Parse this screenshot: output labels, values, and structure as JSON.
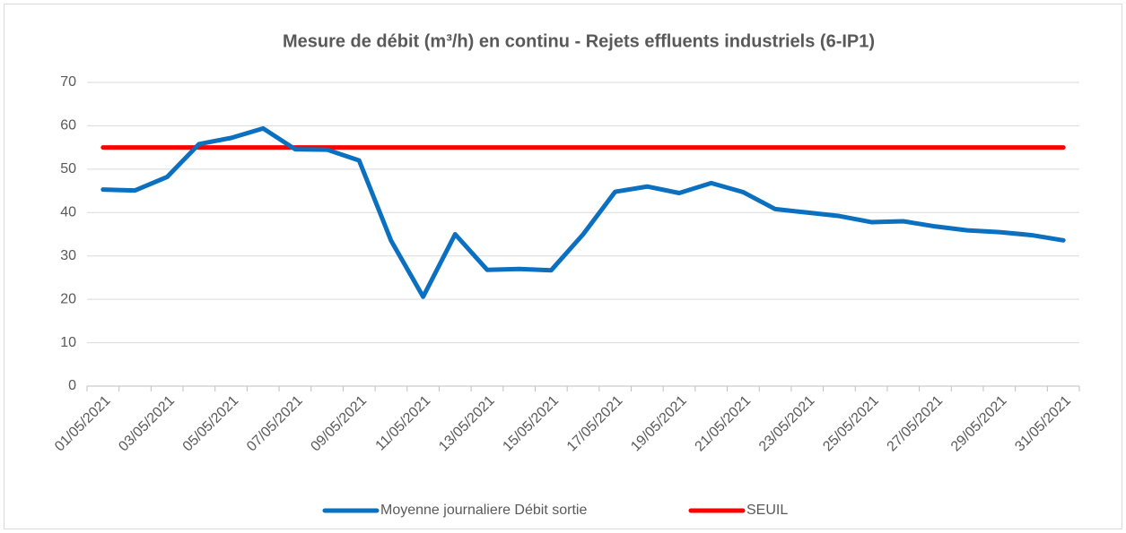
{
  "chart_data": {
    "type": "line",
    "title": "Mesure de débit (m³/h) en continu - Rejets effluents industriels (6-IP1)",
    "categories": [
      "01/05/2021",
      null,
      "03/05/2021",
      null,
      "05/05/2021",
      null,
      "07/05/2021",
      null,
      "09/05/2021",
      null,
      "11/05/2021",
      null,
      "13/05/2021",
      null,
      "15/05/2021",
      null,
      "17/05/2021",
      null,
      "19/05/2021",
      null,
      "21/05/2021",
      null,
      "23/05/2021",
      null,
      "25/05/2021",
      null,
      "27/05/2021",
      null,
      "29/05/2021",
      null,
      "31/05/2021"
    ],
    "series": [
      {
        "name": "Moyenne journaliere Débit sortie",
        "color": "#0a70bf",
        "values": [
          45.3,
          45.1,
          48.2,
          55.8,
          57.2,
          59.4,
          54.6,
          54.5,
          52.0,
          33.5,
          20.6,
          35.0,
          26.8,
          27.0,
          26.7,
          35.0,
          44.8,
          46.0,
          44.5,
          46.8,
          44.7,
          40.8,
          40.0,
          39.2,
          37.8,
          38.0,
          36.8,
          35.9,
          35.5,
          34.8,
          33.6
        ]
      },
      {
        "name": "SEUIL",
        "color": "#ff0000",
        "values": [
          55,
          55,
          55,
          55,
          55,
          55,
          55,
          55,
          55,
          55,
          55,
          55,
          55,
          55,
          55,
          55,
          55,
          55,
          55,
          55,
          55,
          55,
          55,
          55,
          55,
          55,
          55,
          55,
          55,
          55,
          55
        ]
      }
    ],
    "ylim": [
      0,
      70
    ],
    "yticks": [
      0,
      10,
      20,
      30,
      40,
      50,
      60,
      70
    ],
    "grid": true,
    "legend": "bottom"
  }
}
